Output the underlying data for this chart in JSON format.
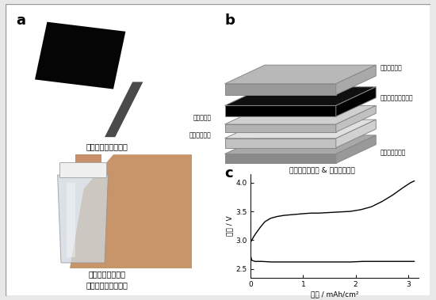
{
  "background_color": "#e8e8e8",
  "panel_bg": "#ffffff",
  "label_a": "a",
  "label_b": "b",
  "label_c": "c",
  "caption_top": "多孔性カーボン電極",
  "caption_bottom_line1": "レドックスメディ",
  "caption_bottom_line2": "エーター含有電解液",
  "layer_label_0": "流路兼集電体",
  "layer_label_1": "多孔性カーボン電極",
  "layer_label_2_left": "セパレータ",
  "layer_label_3_left": "金属リチウム",
  "layer_label_4": "メッシュ集電体",
  "layer_caption": "電解液注液技術 & 電極積層技術",
  "xlabel": "容量 / mAh/cm²",
  "ylabel": "電圧 / V",
  "xlim": [
    0,
    3.2
  ],
  "ylim": [
    2.35,
    4.15
  ],
  "xticks": [
    0,
    1,
    2,
    3
  ],
  "yticks": [
    2.5,
    3.0,
    3.5,
    4.0
  ],
  "charge_x": [
    0.0,
    0.0,
    0.02,
    0.05,
    0.1,
    0.18,
    0.27,
    0.38,
    0.5,
    0.63,
    0.75,
    0.88,
    1.0,
    1.15,
    1.3,
    1.5,
    1.7,
    1.9,
    2.1,
    2.3,
    2.5,
    2.7,
    2.9,
    3.05,
    3.12
  ],
  "charge_y": [
    3.35,
    2.97,
    3.0,
    3.05,
    3.12,
    3.22,
    3.32,
    3.38,
    3.41,
    3.43,
    3.44,
    3.45,
    3.46,
    3.47,
    3.47,
    3.48,
    3.49,
    3.5,
    3.53,
    3.58,
    3.67,
    3.78,
    3.91,
    4.0,
    4.03
  ],
  "discharge_x": [
    0.0,
    0.02,
    0.08,
    0.2,
    0.4,
    0.65,
    0.9,
    1.15,
    1.4,
    1.65,
    1.9,
    2.15,
    2.4,
    2.65,
    2.9,
    3.1,
    3.12
  ],
  "discharge_y": [
    2.72,
    2.65,
    2.63,
    2.63,
    2.62,
    2.62,
    2.62,
    2.62,
    2.62,
    2.62,
    2.62,
    2.63,
    2.63,
    2.63,
    2.63,
    2.63,
    2.63
  ],
  "photo_top_bg": "#b8b8b8",
  "photo_bot_bg": "#1e1e1e",
  "layer_colors": [
    "#b5b5b5",
    "#0a0a0a",
    "#d5d5d5",
    "#e8e8e8",
    "#a0a0a0"
  ]
}
